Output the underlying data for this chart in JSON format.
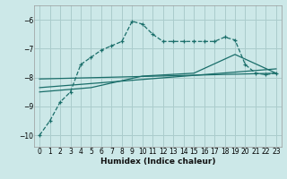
{
  "title": "",
  "xlabel": "Humidex (Indice chaleur)",
  "bg_color": "#cce8e8",
  "grid_color": "#aacccc",
  "line_color": "#1a6e6a",
  "xlim": [
    -0.5,
    23.5
  ],
  "ylim": [
    -10.4,
    -5.5
  ],
  "yticks": [
    -10,
    -9,
    -8,
    -7,
    -6
  ],
  "xticks": [
    0,
    1,
    2,
    3,
    4,
    5,
    6,
    7,
    8,
    9,
    10,
    11,
    12,
    13,
    14,
    15,
    16,
    17,
    18,
    19,
    20,
    21,
    22,
    23
  ],
  "line1_x": [
    0,
    1,
    2,
    3,
    4,
    5,
    6,
    7,
    8,
    9,
    10,
    11,
    12,
    13,
    14,
    15,
    16,
    17,
    18,
    19,
    20,
    21,
    22,
    23
  ],
  "line1_y": [
    -10.0,
    -9.5,
    -8.85,
    -8.5,
    -7.55,
    -7.3,
    -7.05,
    -6.9,
    -6.75,
    -6.05,
    -6.15,
    -6.5,
    -6.75,
    -6.75,
    -6.75,
    -6.75,
    -6.75,
    -6.75,
    -6.6,
    -6.7,
    -7.55,
    -7.85,
    -7.9,
    -7.85
  ],
  "line2_x": [
    0,
    23
  ],
  "line2_y": [
    -8.05,
    -7.85
  ],
  "line3_x": [
    0,
    23
  ],
  "line3_y": [
    -8.35,
    -7.7
  ],
  "line4_x": [
    0,
    5,
    10,
    15,
    19,
    23
  ],
  "line4_y": [
    -8.5,
    -8.35,
    -7.95,
    -7.85,
    -7.2,
    -7.85
  ]
}
